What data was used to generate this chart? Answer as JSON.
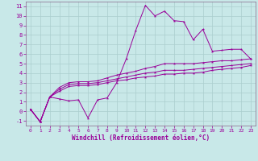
{
  "xlabel": "Windchill (Refroidissement éolien,°C)",
  "bg_color": "#c8e8e8",
  "line_color": "#990099",
  "grid_color": "#aacece",
  "spine_color": "#886688",
  "xlim": [
    -0.5,
    23.5
  ],
  "ylim": [
    -1.5,
    11.5
  ],
  "xticks": [
    0,
    1,
    2,
    3,
    4,
    5,
    6,
    7,
    8,
    9,
    10,
    11,
    12,
    13,
    14,
    15,
    16,
    17,
    18,
    19,
    20,
    21,
    22,
    23
  ],
  "yticks": [
    -1,
    0,
    1,
    2,
    3,
    4,
    5,
    6,
    7,
    8,
    9,
    10,
    11
  ],
  "series1_x": [
    0,
    1,
    2,
    3,
    4,
    5,
    6,
    7,
    8,
    9,
    10,
    11,
    12,
    13,
    14,
    15,
    16,
    17,
    18,
    19,
    20,
    21,
    22,
    23
  ],
  "series1_y": [
    0.2,
    -1.1,
    1.5,
    1.3,
    1.1,
    1.2,
    -0.7,
    1.2,
    1.4,
    3.0,
    5.5,
    8.5,
    11.1,
    10.0,
    10.5,
    9.5,
    9.4,
    7.5,
    8.6,
    6.3,
    6.4,
    6.5,
    6.5,
    5.5
  ],
  "series2_x": [
    0,
    1,
    2,
    3,
    4,
    5,
    6,
    7,
    8,
    9,
    10,
    11,
    12,
    13,
    14,
    15,
    16,
    17,
    18,
    19,
    20,
    21,
    22,
    23
  ],
  "series2_y": [
    0.2,
    -1.1,
    1.5,
    2.5,
    3.0,
    3.1,
    3.1,
    3.2,
    3.5,
    3.8,
    4.0,
    4.2,
    4.5,
    4.7,
    5.0,
    5.0,
    5.0,
    5.0,
    5.1,
    5.2,
    5.3,
    5.3,
    5.4,
    5.5
  ],
  "series3_x": [
    0,
    1,
    2,
    3,
    4,
    5,
    6,
    7,
    8,
    9,
    10,
    11,
    12,
    13,
    14,
    15,
    16,
    17,
    18,
    19,
    20,
    21,
    22,
    23
  ],
  "series3_y": [
    0.2,
    -1.1,
    1.5,
    2.3,
    2.8,
    2.9,
    2.9,
    3.0,
    3.2,
    3.4,
    3.6,
    3.8,
    4.0,
    4.1,
    4.3,
    4.3,
    4.3,
    4.4,
    4.5,
    4.6,
    4.7,
    4.8,
    4.9,
    5.0
  ],
  "series4_x": [
    0,
    1,
    2,
    3,
    4,
    5,
    6,
    7,
    8,
    9,
    10,
    11,
    12,
    13,
    14,
    15,
    16,
    17,
    18,
    19,
    20,
    21,
    22,
    23
  ],
  "series4_y": [
    0.2,
    -1.1,
    1.5,
    2.1,
    2.6,
    2.7,
    2.7,
    2.8,
    3.0,
    3.2,
    3.3,
    3.5,
    3.6,
    3.7,
    3.9,
    3.9,
    4.0,
    4.0,
    4.1,
    4.3,
    4.4,
    4.5,
    4.6,
    4.8
  ]
}
